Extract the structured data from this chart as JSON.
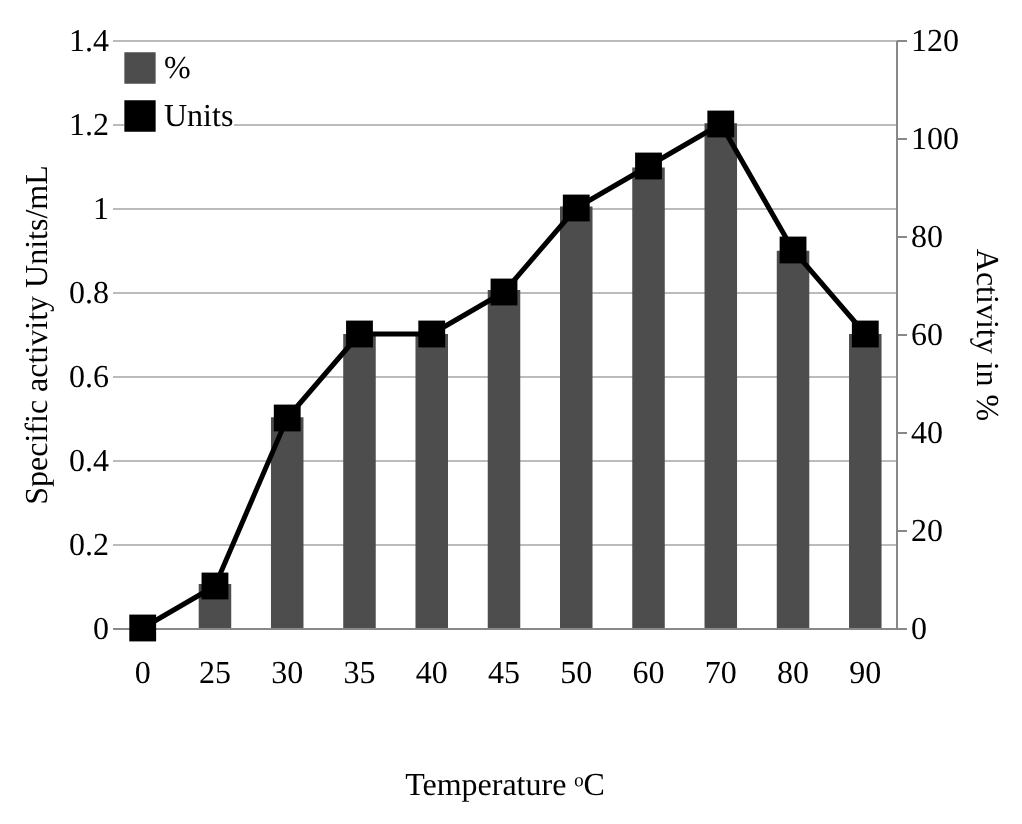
{
  "chart_data": {
    "type": "bar",
    "xlabel": "Temperature ᵒC",
    "ylabel": "Specific activity Units/mL",
    "y2label": "Activity in %",
    "categories": [
      "0",
      "25",
      "30",
      "35",
      "40",
      "45",
      "50",
      "60",
      "70",
      "80",
      "90"
    ],
    "series": [
      {
        "name": "%",
        "axis": "y2",
        "color": "#4d4d4d",
        "values": [
          0,
          9,
          43,
          60,
          60,
          69,
          86,
          94,
          103,
          77,
          60
        ]
      },
      {
        "name": "Units",
        "type": "line",
        "color": "#000000",
        "values": [
          0,
          0.1,
          0.5,
          0.7,
          0.7,
          0.8,
          1.0,
          1.1,
          1.2,
          0.9,
          0.7
        ]
      }
    ],
    "ylim": [
      0,
      1.4
    ],
    "yticks": [
      0,
      0.2,
      0.4,
      0.6,
      0.8,
      1,
      1.2,
      1.4
    ],
    "y2lim": [
      0,
      120
    ],
    "y2ticks": [
      0,
      20,
      40,
      60,
      80,
      100,
      120
    ],
    "grid": "y",
    "legend": "top left",
    "marker": "square"
  }
}
